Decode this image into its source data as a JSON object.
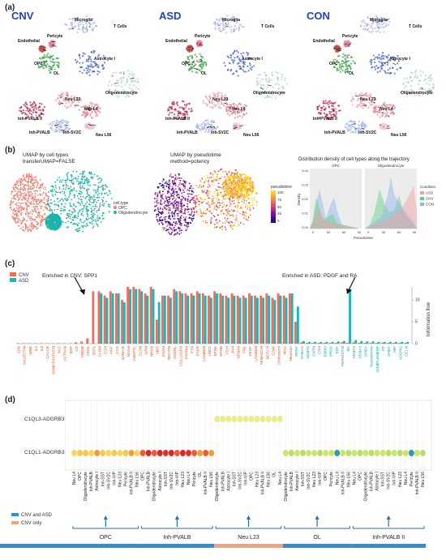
{
  "panel_a": {
    "label": "(a)",
    "conditions": [
      "CNV",
      "ASD",
      "CON"
    ],
    "cluster_labels": [
      "Microglia",
      "T Cells",
      "Pericyte",
      "Endothelial",
      "Astrocyte I",
      "OPC",
      "OL",
      "Oligodendrocyte",
      "Neu L23",
      "Neu L4",
      "Inh-PVALB II",
      "Inh-PVALB",
      "Inh-SV2C",
      "Neu L56"
    ],
    "cluster_labels_con": [
      "Microglia",
      "T Cells",
      "Pericyte",
      "Endothelial",
      "Astrocyte I",
      "OPC",
      "OL",
      "Oligodendrocyte",
      "Neu L23",
      "Neu L4",
      "Inh-PVALB II",
      "Inh-PVALB",
      "Inh-SV2C",
      "Neu L56"
    ]
  },
  "panel_b": {
    "label": "(b)",
    "umap_cell_title": [
      "UMAP by cell types",
      "transferUMAP=FALSE"
    ],
    "legend_title": "cell.type",
    "legend_items": [
      {
        "name": "OPC",
        "color": "#f08070"
      },
      {
        "name": "Oligodendrocyte",
        "color": "#20b2aa"
      }
    ],
    "umap_pt_title": [
      "UMAP by pseudotime",
      "method=potency"
    ],
    "pt_legend_title": "pseudotime",
    "pt_ticks": [
      "100",
      "75",
      "50",
      "25",
      "0"
    ],
    "density_title": "Distribution density of cell types along the trajectory",
    "density_facets": [
      "OPC",
      "Oligodendrocyte"
    ],
    "density_ylabel": "Density",
    "density_xlabel": "Pseudotime",
    "density_yticks": [
      "0.04",
      "0.03",
      "0.02",
      "0.01",
      "0.00"
    ],
    "density_xticks": [
      "0",
      "30",
      "60",
      "90"
    ],
    "condition_title": "Condition",
    "condition_items": [
      {
        "name": "ASD",
        "color": "#f4a0a0"
      },
      {
        "name": "CNV",
        "color": "#5fd08a"
      },
      {
        "name": "CON",
        "color": "#8fb4ea"
      }
    ]
  },
  "panel_c": {
    "label": "(c)",
    "legend": [
      {
        "name": "CNV",
        "color": "#f26b5b"
      },
      {
        "name": "ASD",
        "color": "#19b7b7"
      }
    ],
    "annotation_cnv": "Enriched in CNV: SPP1",
    "annotation_asd": "Enriched in ASD: PDGF and RA",
    "ylabel": "Information flow",
    "yticks": [
      "0",
      "5",
      "10"
    ],
    "chart_data": {
      "type": "bar",
      "ylabel": "Information flow",
      "categories": [
        "CD6",
        "GALECTIN",
        "WNT",
        "IL2",
        "IL6",
        "CALCR",
        "SOMATOSTATIN",
        "TAC",
        "ACTIVIN",
        "BSP",
        "CD",
        "HMGB",
        "CDH1",
        "SPP1",
        "CADM",
        "CDH",
        "HGF",
        "CCK",
        "GABA-B",
        "NCAM",
        "ANGPTL",
        "CLDN",
        "GRN",
        "NRXN",
        "MPZ",
        "ESAM",
        "NECTIN",
        "ADGRL",
        "COLLAGEN",
        "PTPRM",
        "PTN",
        "PTPR",
        "LAMININ",
        "UNC5",
        "EPHA",
        "EPHB",
        "CDH",
        "JAM",
        "SEMA6",
        "FN1",
        "VEGF",
        "LAMININ",
        "TENASCIN",
        "NOTCH",
        "CD46",
        "Cholesterol",
        "MAG",
        "Neurexin",
        "PDGF",
        "DHEAS",
        "SEMA5",
        "CNTN",
        "CRH",
        "ENHO",
        "PROS",
        "EGF",
        "PERIOSTIN",
        "RA",
        "SEMA3",
        "SEMA4",
        "DHEA",
        "Testosterone",
        "COMPLEMENT",
        "OT",
        "DHEA",
        "MIF",
        "ADGRG",
        "OCLN"
      ],
      "series": [
        {
          "name": "CNV",
          "values": [
            0.1,
            0.1,
            0.1,
            0.1,
            0.1,
            0.1,
            0.1,
            0.1,
            0.1,
            0.1,
            0.3,
            0.5,
            1.2,
            12.0,
            12.0,
            11.0,
            12.0,
            11.5,
            10.0,
            13.0,
            13.0,
            12.5,
            11.5,
            13.0,
            5.5,
            11.0,
            11.0,
            12.5,
            12.0,
            11.5,
            11.5,
            12.0,
            11.5,
            11.0,
            12.0,
            11.5,
            11.0,
            11.5,
            11.0,
            11.0,
            11.5,
            11.0,
            11.0,
            11.5,
            10.5,
            11.5,
            11.0,
            11.5,
            5.0,
            0.3,
            0.2,
            0.2,
            0.2,
            0.2,
            0.2,
            0.2,
            0.3,
            0.2,
            0.3,
            0.2,
            0.2,
            0.2,
            0.2,
            0.2,
            0.2,
            0.2,
            0.2,
            0.2
          ]
        },
        {
          "name": "ASD",
          "values": [
            0.0,
            0.0,
            0.0,
            0.0,
            0.0,
            0.0,
            0.0,
            0.0,
            0.0,
            0.0,
            0.0,
            0.0,
            0.0,
            0.0,
            11.5,
            10.5,
            11.5,
            11.5,
            9.5,
            12.5,
            12.5,
            12.0,
            11.0,
            12.5,
            9.5,
            11.0,
            10.5,
            12.0,
            11.5,
            11.0,
            11.0,
            11.5,
            11.0,
            10.5,
            11.5,
            11.0,
            10.5,
            11.0,
            10.5,
            10.5,
            11.0,
            10.5,
            10.5,
            11.0,
            10.0,
            11.0,
            10.5,
            11.5,
            8.5,
            0.6,
            0.4,
            0.4,
            0.4,
            0.4,
            0.4,
            0.5,
            0.6,
            12.5,
            0.8,
            0.6,
            0.5,
            0.5,
            0.4,
            0.4,
            0.4,
            0.4,
            0.4,
            0.4
          ]
        }
      ],
      "ylim": [
        0,
        13
      ],
      "label_colors": {
        "cnv_side": "#e8521f",
        "asd_side": "#13a6a6"
      }
    }
  },
  "panel_d": {
    "label": "(d)",
    "row_labels": [
      "C1QL3-ADGRB3",
      "C1QL1-ADGRB3"
    ],
    "source_groups": [
      "OPC",
      "Inh-PVALB",
      "Neu L23",
      "OL",
      "Inh-PVALB II"
    ],
    "group_colors": [
      "#2f8ed8",
      "#2f8ed8",
      "#f2a37a",
      "#2f8ed8",
      "#2f8ed8"
    ],
    "legend": [
      {
        "name": "CNV and ASD",
        "color": "#2f8ed8"
      },
      {
        "name": "CNV only",
        "color": "#f2a37a"
      }
    ],
    "targets": [
      [
        "Neu L4",
        "OPC",
        "Oligodendrocyte",
        "Inh-PVALB",
        "Astrocyte I",
        "Inh-SST",
        "Inh-SV2C",
        "Inh-VIP",
        "Neu L23",
        "Pericyte",
        "Inh-PVALB II",
        "Neu L56"
      ],
      [
        "OPC",
        "Inh-PVALB",
        "Oligodendrocyte",
        "Astrocyte I",
        "Inh-SST",
        "Inh-SV2C",
        "Inh-VIP",
        "Neu L23",
        "Neu L4",
        "Pericyte",
        "OL",
        "Inh-PVALB II",
        "Neu L56"
      ],
      [
        "Oligodendrocyte",
        "Inh-PVALB",
        "Astrocyte I",
        "Inh-SST",
        "Inh-SV2C",
        "Inh-VIP",
        "OPC",
        "Neu L23",
        "Inh-PVALB II",
        "Neu L56",
        "OL",
        "Neu L4"
      ],
      [
        "Oligodendrocyte",
        "Inh-PVALB",
        "Astrocyte I",
        "Inh-SST",
        "Inh-SV2C",
        "Neu L23",
        "Inh-VIP",
        "OPC",
        "Pericyte",
        "Neu L4",
        "Inh-PVALB II",
        "Neu L56"
      ],
      [
        "Neu L4",
        "OPC",
        "Oligodendrocyte",
        "Inh-PVALB",
        "Astrocyte I",
        "Inh-SST",
        "Inh-SV2C",
        "Inh-VIP",
        "Neu L23",
        "Neu L4",
        "Pericyte",
        "Inh-PVALB II",
        "Neu L56"
      ]
    ]
  }
}
